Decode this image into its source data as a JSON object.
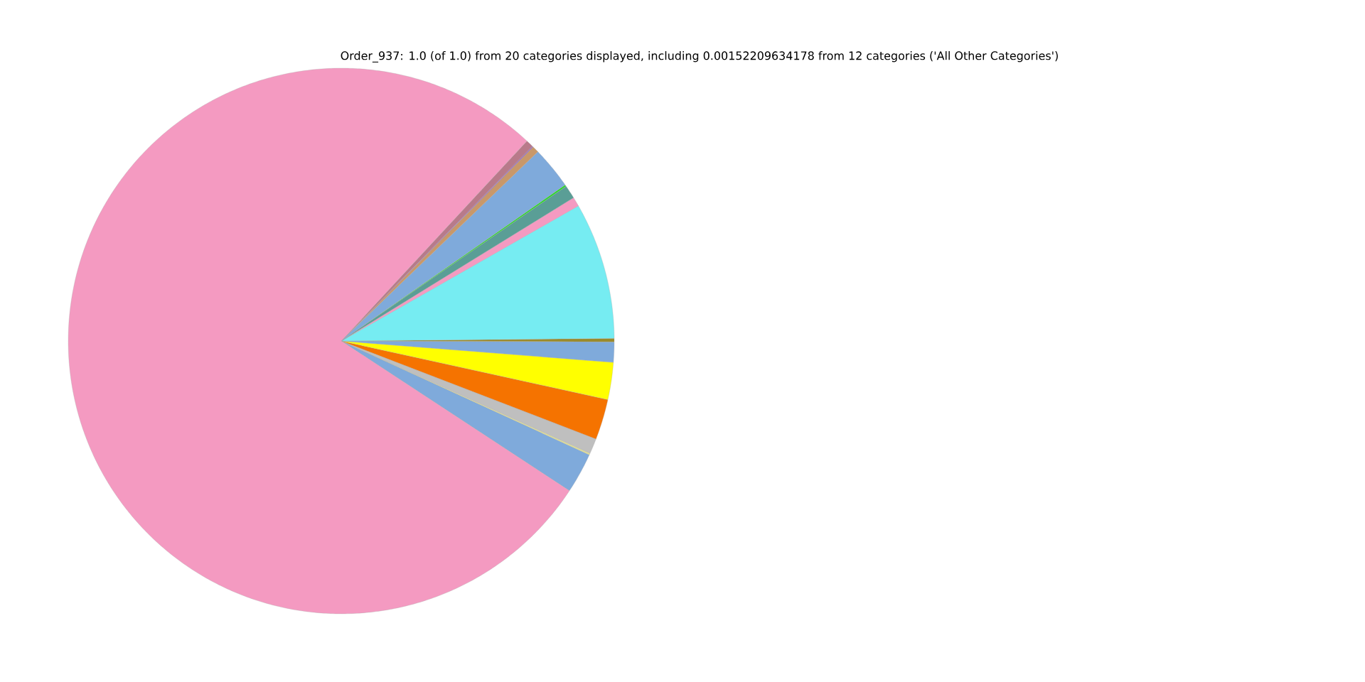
{
  "chart_data": {
    "type": "pie",
    "title": "Order_937: 1.0 (of 1.0) from 20 categories displayed, including 0.00152209634178 from 12 categories ('All Other Categories')",
    "categories": [
      null,
      null,
      null,
      null,
      null,
      null,
      null,
      null,
      null,
      null,
      null,
      null,
      null,
      null,
      null,
      null
    ],
    "values": [
      2.4,
      0.1,
      0.9,
      2.4,
      2.2,
      1.2,
      0.2,
      8.1,
      0.55,
      0.8,
      0.1,
      2.5,
      0.4,
      0.05,
      0.45,
      77.65
    ],
    "colors": [
      "#7faadb",
      "#dede9a",
      "#bfbfbf",
      "#f57300",
      "#ffff00",
      "#7faadb",
      "#9a8a2a",
      "#76ecf2",
      "#f49ac1",
      "#5a9e96",
      "#2bd82b",
      "#7faadb",
      "#c8986a",
      "#8a5ac8",
      "#b87a8a",
      "#f49ac1"
    ]
  }
}
